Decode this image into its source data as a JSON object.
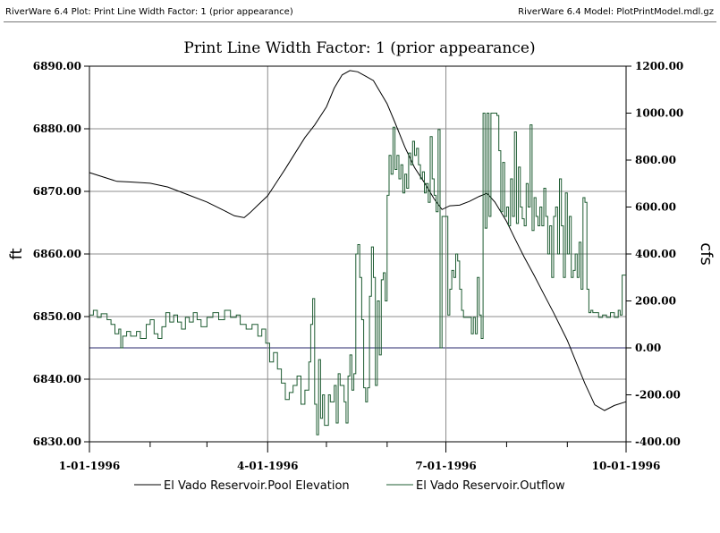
{
  "header": {
    "left_text": "RiverWare 6.4 Plot: Print Line Width Factor: 1 (prior appearance)",
    "right_text": "RiverWare 6.4 Model: PlotPrintModel.mdl.gz"
  },
  "colors": {
    "pool_line": "#000000",
    "outflow_line": "#1e5c32",
    "grid": "#8c8c8c",
    "zero_line": "#2a2a6e"
  },
  "chart_data": {
    "type": "line",
    "title": "Print Line Width Factor: 1 (prior appearance)",
    "y_left_label": "ft",
    "y_right_label": "cfs",
    "x_range": [
      "1996-01-01",
      "1996-10-01"
    ],
    "x_ticks": [
      "1-01-1996",
      "4-01-1996",
      "7-01-1996",
      "10-01-1996"
    ],
    "x_tick_dates": [
      "1996-01-01",
      "1996-04-01",
      "1996-07-01",
      "1996-10-01"
    ],
    "y_left_range": [
      6830,
      6890
    ],
    "y_left_ticks": [
      "6830.00",
      "6840.00",
      "6850.00",
      "6860.00",
      "6870.00",
      "6880.00",
      "6890.00"
    ],
    "y_right_range": [
      -400,
      1200
    ],
    "y_right_ticks": [
      "-400.00",
      "-200.00",
      "0.00",
      "200.00",
      "400.00",
      "600.00",
      "800.00",
      "1000.00",
      "1200.00"
    ],
    "grid": true,
    "legend_position": "bottom",
    "series": [
      {
        "name": "El Vado Reservoir.Pool Elevation",
        "axis": "left",
        "style": "line",
        "points": [
          [
            "1996-01-01",
            6873.0
          ],
          [
            "1996-01-08",
            6872.3
          ],
          [
            "1996-01-15",
            6871.6
          ],
          [
            "1996-01-22",
            6871.5
          ],
          [
            "1996-02-01",
            6871.3
          ],
          [
            "1996-02-10",
            6870.7
          ],
          [
            "1996-02-20",
            6869.5
          ],
          [
            "1996-03-01",
            6868.3
          ],
          [
            "1996-03-10",
            6866.9
          ],
          [
            "1996-03-15",
            6866.1
          ],
          [
            "1996-03-20",
            6865.8
          ],
          [
            "1996-03-23",
            6866.6
          ],
          [
            "1996-03-27",
            6867.8
          ],
          [
            "1996-04-01",
            6869.3
          ],
          [
            "1996-04-05",
            6871.2
          ],
          [
            "1996-04-10",
            6873.6
          ],
          [
            "1996-04-15",
            6876.1
          ],
          [
            "1996-04-20",
            6878.6
          ],
          [
            "1996-04-25",
            6880.6
          ],
          [
            "1996-05-01",
            6883.5
          ],
          [
            "1996-05-05",
            6886.5
          ],
          [
            "1996-05-09",
            6888.6
          ],
          [
            "1996-05-13",
            6889.3
          ],
          [
            "1996-05-17",
            6889.1
          ],
          [
            "1996-05-21",
            6888.4
          ],
          [
            "1996-05-25",
            6887.7
          ],
          [
            "1996-06-01",
            6884.0
          ],
          [
            "1996-06-05",
            6881.0
          ],
          [
            "1996-06-10",
            6877.1
          ],
          [
            "1996-06-15",
            6873.8
          ],
          [
            "1996-06-20",
            6871.4
          ],
          [
            "1996-06-25",
            6868.8
          ],
          [
            "1996-06-29",
            6867.1
          ],
          [
            "1996-07-03",
            6867.7
          ],
          [
            "1996-07-08",
            6867.8
          ],
          [
            "1996-07-13",
            6868.4
          ],
          [
            "1996-07-18",
            6869.2
          ],
          [
            "1996-07-22",
            6869.7
          ],
          [
            "1996-07-26",
            6868.3
          ],
          [
            "1996-08-01",
            6865.2
          ],
          [
            "1996-08-05",
            6862.6
          ],
          [
            "1996-08-10",
            6859.5
          ],
          [
            "1996-08-15",
            6856.6
          ],
          [
            "1996-08-20",
            6853.6
          ],
          [
            "1996-08-25",
            6850.6
          ],
          [
            "1996-09-01",
            6846.2
          ],
          [
            "1996-09-05",
            6843.1
          ],
          [
            "1996-09-10",
            6839.3
          ],
          [
            "1996-09-15",
            6835.9
          ],
          [
            "1996-09-20",
            6835.0
          ],
          [
            "1996-09-25",
            6835.8
          ],
          [
            "1996-10-01",
            6836.4
          ]
        ]
      },
      {
        "name": "El Vado Reservoir.Outflow",
        "axis": "right",
        "style": "step",
        "points": [
          [
            "1996-01-01",
            140
          ],
          [
            "1996-01-03",
            160
          ],
          [
            "1996-01-05",
            130
          ],
          [
            "1996-01-07",
            145
          ],
          [
            "1996-01-10",
            120
          ],
          [
            "1996-01-12",
            100
          ],
          [
            "1996-01-14",
            60
          ],
          [
            "1996-01-16",
            80
          ],
          [
            "1996-01-17",
            0
          ],
          [
            "1996-01-18",
            50
          ],
          [
            "1996-01-20",
            70
          ],
          [
            "1996-01-22",
            50
          ],
          [
            "1996-01-25",
            70
          ],
          [
            "1996-01-27",
            40
          ],
          [
            "1996-01-30",
            100
          ],
          [
            "1996-02-01",
            120
          ],
          [
            "1996-02-03",
            60
          ],
          [
            "1996-02-05",
            40
          ],
          [
            "1996-02-07",
            90
          ],
          [
            "1996-02-09",
            150
          ],
          [
            "1996-02-11",
            110
          ],
          [
            "1996-02-13",
            140
          ],
          [
            "1996-02-15",
            110
          ],
          [
            "1996-02-17",
            80
          ],
          [
            "1996-02-19",
            130
          ],
          [
            "1996-02-21",
            110
          ],
          [
            "1996-02-23",
            150
          ],
          [
            "1996-02-25",
            120
          ],
          [
            "1996-02-27",
            90
          ],
          [
            "1996-03-01",
            130
          ],
          [
            "1996-03-04",
            150
          ],
          [
            "1996-03-07",
            120
          ],
          [
            "1996-03-10",
            160
          ],
          [
            "1996-03-13",
            130
          ],
          [
            "1996-03-16",
            140
          ],
          [
            "1996-03-18",
            100
          ],
          [
            "1996-03-21",
            80
          ],
          [
            "1996-03-24",
            100
          ],
          [
            "1996-03-27",
            50
          ],
          [
            "1996-03-29",
            80
          ],
          [
            "1996-03-31",
            20
          ],
          [
            "1996-04-02",
            -60
          ],
          [
            "1996-04-04",
            -20
          ],
          [
            "1996-04-06",
            -90
          ],
          [
            "1996-04-08",
            -150
          ],
          [
            "1996-04-10",
            -220
          ],
          [
            "1996-04-12",
            -190
          ],
          [
            "1996-04-14",
            -160
          ],
          [
            "1996-04-16",
            -120
          ],
          [
            "1996-04-18",
            -240
          ],
          [
            "1996-04-20",
            -180
          ],
          [
            "1996-04-22",
            -60
          ],
          [
            "1996-04-23",
            100
          ],
          [
            "1996-04-24",
            210
          ],
          [
            "1996-04-25",
            -240
          ],
          [
            "1996-04-26",
            -370
          ],
          [
            "1996-04-27",
            -50
          ],
          [
            "1996-04-28",
            -300
          ],
          [
            "1996-04-29",
            -200
          ],
          [
            "1996-04-30",
            -330
          ],
          [
            "1996-05-02",
            -200
          ],
          [
            "1996-05-03",
            -230
          ],
          [
            "1996-05-05",
            -160
          ],
          [
            "1996-05-06",
            -320
          ],
          [
            "1996-05-07",
            -110
          ],
          [
            "1996-05-08",
            -160
          ],
          [
            "1996-05-10",
            -230
          ],
          [
            "1996-05-11",
            -320
          ],
          [
            "1996-05-12",
            -120
          ],
          [
            "1996-05-13",
            -30
          ],
          [
            "1996-05-14",
            -180
          ],
          [
            "1996-05-15",
            -110
          ],
          [
            "1996-05-16",
            400
          ],
          [
            "1996-05-17",
            440
          ],
          [
            "1996-05-18",
            300
          ],
          [
            "1996-05-19",
            120
          ],
          [
            "1996-05-20",
            -170
          ],
          [
            "1996-05-21",
            -230
          ],
          [
            "1996-05-22",
            -170
          ],
          [
            "1996-05-23",
            220
          ],
          [
            "1996-05-24",
            430
          ],
          [
            "1996-05-25",
            300
          ],
          [
            "1996-05-26",
            -160
          ],
          [
            "1996-05-27",
            200
          ],
          [
            "1996-05-28",
            -30
          ],
          [
            "1996-05-29",
            290
          ],
          [
            "1996-05-30",
            320
          ],
          [
            "1996-05-31",
            200
          ],
          [
            "1996-06-01",
            650
          ],
          [
            "1996-06-02",
            820
          ],
          [
            "1996-06-03",
            740
          ],
          [
            "1996-06-04",
            940
          ],
          [
            "1996-06-05",
            760
          ],
          [
            "1996-06-06",
            820
          ],
          [
            "1996-06-07",
            720
          ],
          [
            "1996-06-08",
            780
          ],
          [
            "1996-06-09",
            660
          ],
          [
            "1996-06-10",
            740
          ],
          [
            "1996-06-11",
            680
          ],
          [
            "1996-06-12",
            830
          ],
          [
            "1996-06-13",
            780
          ],
          [
            "1996-06-14",
            880
          ],
          [
            "1996-06-15",
            820
          ],
          [
            "1996-06-16",
            850
          ],
          [
            "1996-06-17",
            780
          ],
          [
            "1996-06-18",
            720
          ],
          [
            "1996-06-19",
            750
          ],
          [
            "1996-06-20",
            660
          ],
          [
            "1996-06-21",
            700
          ],
          [
            "1996-06-22",
            620
          ],
          [
            "1996-06-23",
            900
          ],
          [
            "1996-06-24",
            720
          ],
          [
            "1996-06-25",
            650
          ],
          [
            "1996-06-26",
            580
          ],
          [
            "1996-06-27",
            930
          ],
          [
            "1996-06-28",
            0
          ],
          [
            "1996-06-29",
            560
          ],
          [
            "1996-07-01",
            560
          ],
          [
            "1996-07-02",
            140
          ],
          [
            "1996-07-03",
            250
          ],
          [
            "1996-07-04",
            330
          ],
          [
            "1996-07-05",
            300
          ],
          [
            "1996-07-06",
            400
          ],
          [
            "1996-07-07",
            370
          ],
          [
            "1996-07-08",
            250
          ],
          [
            "1996-07-09",
            160
          ],
          [
            "1996-07-10",
            130
          ],
          [
            "1996-07-11",
            130
          ],
          [
            "1996-07-14",
            60
          ],
          [
            "1996-07-15",
            130
          ],
          [
            "1996-07-16",
            60
          ],
          [
            "1996-07-17",
            300
          ],
          [
            "1996-07-18",
            140
          ],
          [
            "1996-07-19",
            40
          ],
          [
            "1996-07-20",
            1000
          ],
          [
            "1996-07-21",
            510
          ],
          [
            "1996-07-22",
            1000
          ],
          [
            "1996-07-23",
            560
          ],
          [
            "1996-07-24",
            1000
          ],
          [
            "1996-07-25",
            1000
          ],
          [
            "1996-07-26",
            1000
          ],
          [
            "1996-07-27",
            990
          ],
          [
            "1996-07-28",
            840
          ],
          [
            "1996-07-29",
            580
          ],
          [
            "1996-07-30",
            790
          ],
          [
            "1996-07-31",
            560
          ],
          [
            "1996-08-01",
            600
          ],
          [
            "1996-08-02",
            520
          ],
          [
            "1996-08-03",
            720
          ],
          [
            "1996-08-04",
            560
          ],
          [
            "1996-08-05",
            920
          ],
          [
            "1996-08-06",
            530
          ],
          [
            "1996-08-07",
            770
          ],
          [
            "1996-08-08",
            600
          ],
          [
            "1996-08-09",
            550
          ],
          [
            "1996-08-10",
            520
          ],
          [
            "1996-08-11",
            700
          ],
          [
            "1996-08-12",
            600
          ],
          [
            "1996-08-13",
            950
          ],
          [
            "1996-08-14",
            500
          ],
          [
            "1996-08-15",
            640
          ],
          [
            "1996-08-16",
            560
          ],
          [
            "1996-08-17",
            520
          ],
          [
            "1996-08-18",
            600
          ],
          [
            "1996-08-19",
            520
          ],
          [
            "1996-08-20",
            680
          ],
          [
            "1996-08-21",
            560
          ],
          [
            "1996-08-22",
            400
          ],
          [
            "1996-08-23",
            520
          ],
          [
            "1996-08-24",
            300
          ],
          [
            "1996-08-25",
            560
          ],
          [
            "1996-08-26",
            600
          ],
          [
            "1996-08-27",
            400
          ],
          [
            "1996-08-28",
            720
          ],
          [
            "1996-08-29",
            520
          ],
          [
            "1996-08-30",
            300
          ],
          [
            "1996-08-31",
            660
          ],
          [
            "1996-09-01",
            400
          ],
          [
            "1996-09-02",
            560
          ],
          [
            "1996-09-03",
            300
          ],
          [
            "1996-09-04",
            330
          ],
          [
            "1996-09-05",
            400
          ],
          [
            "1996-09-06",
            300
          ],
          [
            "1996-09-07",
            450
          ],
          [
            "1996-09-08",
            250
          ],
          [
            "1996-09-09",
            640
          ],
          [
            "1996-09-10",
            620
          ],
          [
            "1996-09-11",
            250
          ],
          [
            "1996-09-12",
            150
          ],
          [
            "1996-09-13",
            160
          ],
          [
            "1996-09-14",
            150
          ],
          [
            "1996-09-16",
            150
          ],
          [
            "1996-09-17",
            130
          ],
          [
            "1996-09-19",
            140
          ],
          [
            "1996-09-21",
            130
          ],
          [
            "1996-09-23",
            150
          ],
          [
            "1996-09-25",
            130
          ],
          [
            "1996-09-27",
            160
          ],
          [
            "1996-09-28",
            140
          ],
          [
            "1996-09-29",
            310
          ],
          [
            "1996-10-01",
            310
          ]
        ]
      }
    ]
  }
}
